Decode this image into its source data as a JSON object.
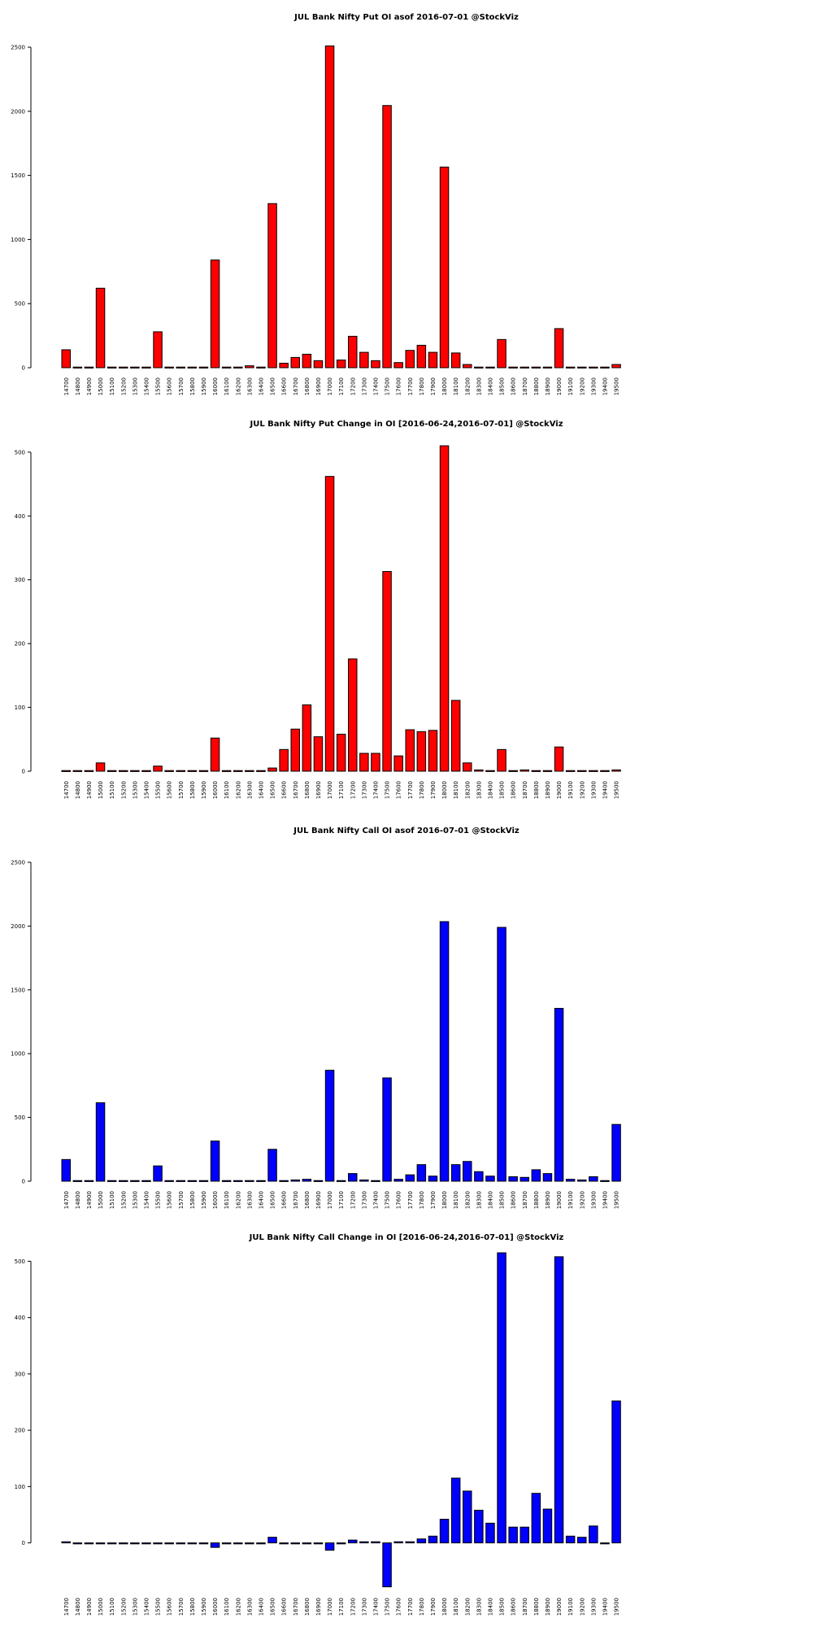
{
  "strikes": [
    "14700",
    "14800",
    "14900",
    "15000",
    "15100",
    "15200",
    "15300",
    "15400",
    "15500",
    "15600",
    "15700",
    "15800",
    "15900",
    "16000",
    "16100",
    "16200",
    "16300",
    "16400",
    "16500",
    "16600",
    "16700",
    "16800",
    "16900",
    "17000",
    "17100",
    "17200",
    "17300",
    "17400",
    "17500",
    "17600",
    "17700",
    "17800",
    "17900",
    "18000",
    "18100",
    "18200",
    "18300",
    "18400",
    "18500",
    "18600",
    "18700",
    "18800",
    "18900",
    "19000",
    "19100",
    "19200",
    "19300",
    "19400",
    "19500"
  ],
  "chart_data": [
    {
      "type": "bar",
      "title": "JUL Bank Nifty Put OI asof 2016-07-01 @StockViz",
      "color": "#ff0000",
      "ylim": [
        0,
        2500
      ],
      "yticks": [
        0,
        500,
        1000,
        1500,
        2000,
        2500
      ],
      "values": [
        140,
        5,
        5,
        620,
        5,
        5,
        5,
        5,
        280,
        5,
        5,
        5,
        5,
        840,
        5,
        5,
        15,
        5,
        1280,
        35,
        80,
        105,
        55,
        2510,
        60,
        245,
        120,
        55,
        2045,
        40,
        135,
        175,
        120,
        1565,
        115,
        25,
        5,
        5,
        220,
        5,
        5,
        5,
        5,
        305,
        5,
        5,
        5,
        5,
        25
      ]
    },
    {
      "type": "bar",
      "title": "JUL Bank Nifty Put Change in OI [2016-06-24,2016-07-01] @StockViz",
      "color": "#ff0000",
      "ylim": [
        0,
        510
      ],
      "yticks": [
        0,
        100,
        200,
        300,
        400,
        500
      ],
      "values": [
        1,
        1,
        1,
        13,
        1,
        1,
        1,
        1,
        8,
        1,
        1,
        1,
        1,
        52,
        1,
        1,
        1,
        1,
        5,
        34,
        66,
        104,
        54,
        462,
        58,
        176,
        28,
        28,
        313,
        24,
        65,
        62,
        64,
        510,
        111,
        13,
        2,
        1,
        34,
        1,
        2,
        1,
        1,
        38,
        1,
        1,
        1,
        1,
        2
      ]
    },
    {
      "type": "bar",
      "title": "JUL Bank Nifty Call OI asof 2016-07-01 @StockViz",
      "color": "#0000ff",
      "ylim": [
        0,
        2500
      ],
      "yticks": [
        0,
        500,
        1000,
        1500,
        2000,
        2500
      ],
      "values": [
        170,
        5,
        5,
        615,
        5,
        5,
        5,
        5,
        120,
        5,
        5,
        5,
        5,
        315,
        5,
        5,
        5,
        5,
        250,
        5,
        10,
        15,
        5,
        870,
        5,
        60,
        10,
        5,
        810,
        15,
        50,
        130,
        40,
        2035,
        130,
        155,
        75,
        40,
        1990,
        35,
        30,
        90,
        60,
        1355,
        15,
        10,
        35,
        5,
        445
      ]
    },
    {
      "type": "bar",
      "title": "JUL Bank Nifty Call Change in OI [2016-06-24,2016-07-01] @StockViz",
      "color": "#0000ff",
      "ylim": [
        -80,
        515
      ],
      "yticks": [
        0,
        100,
        200,
        300,
        400,
        500
      ],
      "values": [
        2,
        0,
        0,
        0,
        0,
        0,
        0,
        0,
        0,
        0,
        0,
        0,
        0,
        -8,
        0,
        0,
        0,
        0,
        10,
        0,
        0,
        0,
        0,
        -13,
        0,
        5,
        2,
        2,
        -78,
        2,
        2,
        7,
        12,
        42,
        115,
        92,
        58,
        35,
        515,
        28,
        28,
        88,
        60,
        508,
        12,
        10,
        30,
        0,
        252
      ]
    }
  ]
}
